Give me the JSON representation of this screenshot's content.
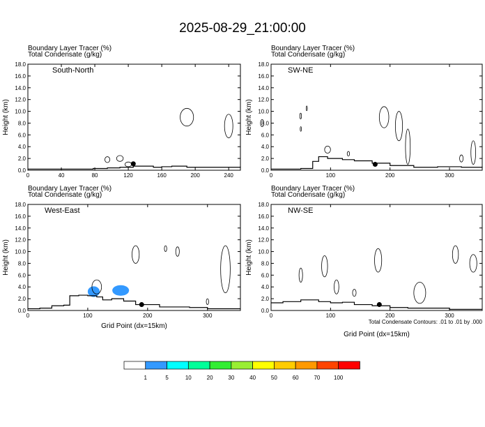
{
  "title": "2025-08-29_21:00:00",
  "panel_title_line1": "Boundary Layer Tracer   (%)",
  "panel_title_line2": "Total Condensate   (g/kg)",
  "y_axis_label": "Height (km)",
  "x_axis_label": "Grid Point (dx=15km)",
  "contour_note": "Total Condensate Contours: .01 to .01 by .000",
  "colors": {
    "terrain": "#000000",
    "contour": "#000000",
    "tracer_fill": "#3399ff"
  },
  "chart_data": [
    {
      "type": "heatmap",
      "label": "South-North",
      "xlim": [
        0,
        254
      ],
      "ylim": [
        0,
        18
      ],
      "xticks": [
        0,
        40,
        80,
        120,
        160,
        200,
        240
      ],
      "yticks": [
        0,
        2,
        4,
        6,
        8,
        10,
        12,
        14,
        16,
        18
      ],
      "marker": [
        126,
        1.1
      ],
      "terrain": [
        [
          0,
          0.2
        ],
        [
          40,
          0.2
        ],
        [
          78,
          0.3
        ],
        [
          95,
          0.4
        ],
        [
          110,
          0.5
        ],
        [
          126,
          0.7
        ],
        [
          150,
          0.5
        ],
        [
          160,
          0.6
        ],
        [
          172,
          0.7
        ],
        [
          190,
          0.5
        ],
        [
          210,
          0.5
        ],
        [
          240,
          0.5
        ],
        [
          254,
          0.6
        ]
      ]
    },
    {
      "type": "heatmap",
      "label": "SW-NE",
      "xlim": [
        0,
        355
      ],
      "ylim": [
        0,
        18
      ],
      "xticks": [
        0,
        100,
        200,
        300
      ],
      "yticks": [
        0,
        2,
        4,
        6,
        8,
        10,
        12,
        14,
        16,
        18
      ],
      "marker": [
        175,
        1.0
      ],
      "terrain": [
        [
          0,
          0.2
        ],
        [
          50,
          0.3
        ],
        [
          70,
          1.5
        ],
        [
          80,
          2.3
        ],
        [
          95,
          2.0
        ],
        [
          120,
          1.8
        ],
        [
          140,
          1.6
        ],
        [
          170,
          1.2
        ],
        [
          200,
          0.8
        ],
        [
          240,
          0.5
        ],
        [
          280,
          0.6
        ],
        [
          320,
          0.5
        ],
        [
          355,
          0.6
        ]
      ]
    },
    {
      "type": "heatmap",
      "label": "West-East",
      "xlim": [
        0,
        355
      ],
      "ylim": [
        0,
        18
      ],
      "xticks": [
        0,
        100,
        200,
        300
      ],
      "yticks": [
        0,
        2,
        4,
        6,
        8,
        10,
        12,
        14,
        16,
        18
      ],
      "marker": [
        190,
        1.0
      ],
      "tracer_legend_note": "1 to 5 %",
      "terrain": [
        [
          0,
          0.3
        ],
        [
          20,
          0.4
        ],
        [
          40,
          0.8
        ],
        [
          60,
          0.9
        ],
        [
          70,
          2.5
        ],
        [
          85,
          2.6
        ],
        [
          100,
          2.5
        ],
        [
          115,
          2.3
        ],
        [
          125,
          1.8
        ],
        [
          140,
          2.0
        ],
        [
          160,
          1.6
        ],
        [
          180,
          1.0
        ],
        [
          220,
          0.6
        ],
        [
          270,
          0.5
        ],
        [
          300,
          0.3
        ],
        [
          355,
          0.3
        ]
      ]
    },
    {
      "type": "heatmap",
      "label": "NW-SE",
      "xlim": [
        0,
        355
      ],
      "ylim": [
        0,
        18
      ],
      "xticks": [
        0,
        100,
        200,
        300
      ],
      "yticks": [
        0,
        2,
        4,
        6,
        8,
        10,
        12,
        14,
        16,
        18
      ],
      "marker": [
        182,
        1.0
      ],
      "terrain": [
        [
          0,
          1.3
        ],
        [
          20,
          1.5
        ],
        [
          50,
          1.8
        ],
        [
          80,
          1.5
        ],
        [
          100,
          1.3
        ],
        [
          120,
          1.4
        ],
        [
          140,
          1.0
        ],
        [
          170,
          0.8
        ],
        [
          200,
          0.5
        ],
        [
          230,
          0.4
        ],
        [
          260,
          0.4
        ],
        [
          300,
          0.2
        ],
        [
          355,
          0.2
        ]
      ]
    }
  ],
  "colorbar": {
    "levels": [
      "1",
      "5",
      "10",
      "20",
      "30",
      "40",
      "50",
      "60",
      "70",
      "100"
    ],
    "colors": [
      "#ffffff",
      "#3399ff",
      "#00ffff",
      "#00ff99",
      "#33ee33",
      "#99ee33",
      "#ffff00",
      "#ffcc00",
      "#ff9900",
      "#ff4400",
      "#ff0000"
    ]
  }
}
